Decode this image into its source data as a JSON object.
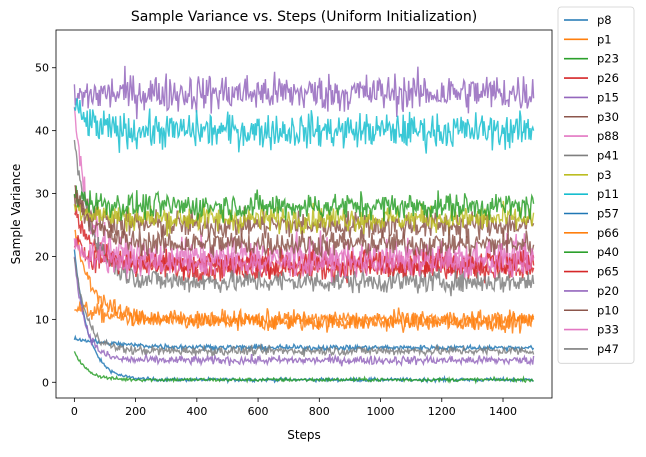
{
  "chart_data": {
    "type": "line",
    "title": "Sample Variance vs. Steps (Uniform Initialization)",
    "xlabel": "Steps",
    "ylabel": "Sample Variance",
    "xlim": [
      -60,
      1560
    ],
    "ylim": [
      -2.5,
      56
    ],
    "xticks": [
      0,
      200,
      400,
      600,
      800,
      1000,
      1200,
      1400
    ],
    "yticks": [
      0,
      10,
      20,
      30,
      40,
      50
    ],
    "grid": false,
    "legend_position": "outside-right",
    "x_range": [
      0,
      1500
    ],
    "series": [
      {
        "name": "p8",
        "color": "#1f77b4",
        "start": 21,
        "end": 0.4,
        "tau": 45,
        "noise": 0.2
      },
      {
        "name": "p1",
        "color": "#ff7f0e",
        "start": 12,
        "end": 9.5,
        "tau": 150,
        "noise": 1.0
      },
      {
        "name": "p23",
        "color": "#2ca02c",
        "start": 5,
        "end": 0.4,
        "tau": 40,
        "noise": 0.2
      },
      {
        "name": "p26",
        "color": "#d62728",
        "start": 27,
        "end": 18,
        "tau": 80,
        "noise": 1.3
      },
      {
        "name": "p15",
        "color": "#9467bd",
        "start": 45,
        "end": 46,
        "tau": 50,
        "noise": 2.2
      },
      {
        "name": "p30",
        "color": "#8c564b",
        "start": 30,
        "end": 25,
        "tau": 60,
        "noise": 1.6
      },
      {
        "name": "p88",
        "color": "#e377c2",
        "start": 44,
        "end": 20,
        "tau": 40,
        "noise": 2.0
      },
      {
        "name": "p41",
        "color": "#7f7f7f",
        "start": 38,
        "end": 16,
        "tau": 60,
        "noise": 1.3
      },
      {
        "name": "p3",
        "color": "#bcbd22",
        "start": 28,
        "end": 26,
        "tau": 80,
        "noise": 1.5
      },
      {
        "name": "p11",
        "color": "#17becf",
        "start": 44,
        "end": 40,
        "tau": 40,
        "noise": 2.0
      },
      {
        "name": "p57",
        "color": "#1f77b4",
        "start": 7,
        "end": 5.5,
        "tau": 150,
        "noise": 0.3
      },
      {
        "name": "p66",
        "color": "#ff7f0e",
        "start": 24,
        "end": 10,
        "tau": 60,
        "noise": 1.0
      },
      {
        "name": "p40",
        "color": "#2ca02c",
        "start": 30,
        "end": 28,
        "tau": 60,
        "noise": 1.5
      },
      {
        "name": "p65",
        "color": "#d62728",
        "start": 22,
        "end": 19,
        "tau": 60,
        "noise": 1.5
      },
      {
        "name": "p20",
        "color": "#9467bd",
        "start": 20,
        "end": 3.5,
        "tau": 35,
        "noise": 0.5
      },
      {
        "name": "p10",
        "color": "#8c564b",
        "start": 31,
        "end": 22,
        "tau": 60,
        "noise": 1.5
      },
      {
        "name": "p33",
        "color": "#e377c2",
        "start": 22,
        "end": 19,
        "tau": 60,
        "noise": 1.5
      },
      {
        "name": "p47",
        "color": "#7f7f7f",
        "start": 20,
        "end": 5,
        "tau": 40,
        "noise": 0.5
      }
    ]
  }
}
